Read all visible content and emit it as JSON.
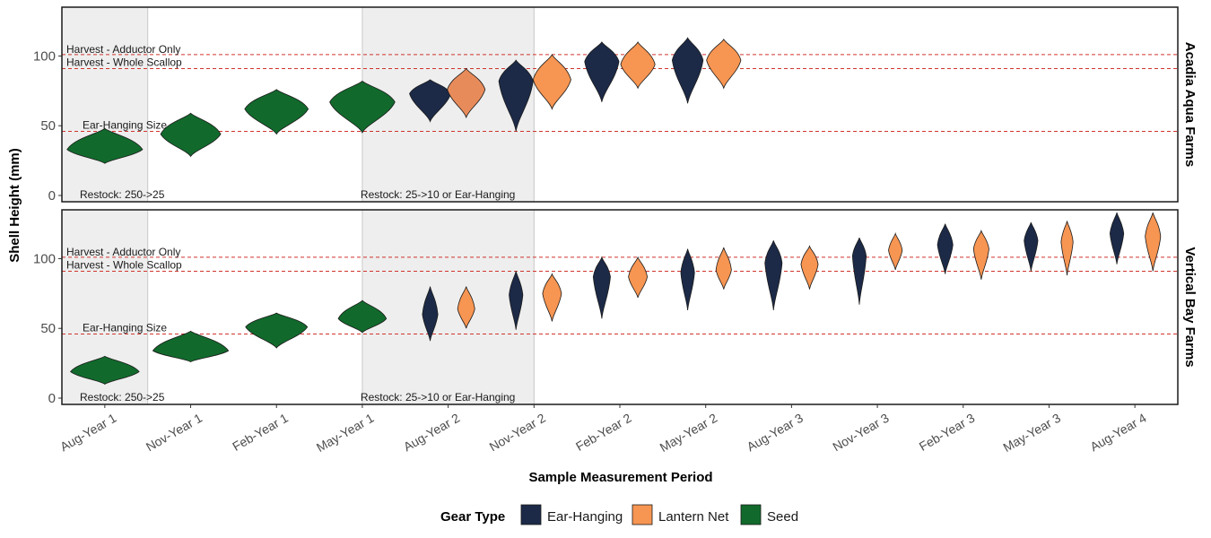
{
  "chart_data": {
    "type": "violin",
    "xlabel": "Sample Measurement Period",
    "ylabel": "Shell Height (mm)",
    "ylim": [
      0,
      135
    ],
    "y_ticks": [
      0,
      50,
      100
    ],
    "categories": [
      "Aug-Year 1",
      "Nov-Year 1",
      "Feb-Year 1",
      "May-Year 1",
      "Aug-Year 2",
      "Nov-Year 2",
      "Feb-Year 2",
      "May-Year 2",
      "Aug-Year 3",
      "Nov-Year 3",
      "Feb-Year 3",
      "May-Year 3",
      "Aug-Year 4"
    ],
    "colors": {
      "Ear-Hanging": "#1c2a48",
      "Lantern Net": "#f79552",
      "Seed": "#116a2c",
      "Lantern Net (Aug-Year 2, Acadia)": "#e88b5b"
    },
    "legend": {
      "title": "Gear Type",
      "items": [
        "Ear-Hanging",
        "Lantern Net",
        "Seed"
      ],
      "position": "bottom"
    },
    "reference_lines": [
      {
        "label": "Harvest - Adductor Only",
        "y": 101
      },
      {
        "label": "Harvest - Whole Scallop",
        "y": 91
      },
      {
        "label": "Ear-Hanging Size",
        "y": 46
      }
    ],
    "shaded_periods": [
      {
        "from": "Aug-Year 1",
        "to": "Aug-Year 1",
        "label": "Restock: 250->25"
      },
      {
        "from": "May-Year 1",
        "to": "Nov-Year 2",
        "label": "Restock: 25->10 or Ear-Hanging"
      }
    ],
    "panels": [
      {
        "strip": "Acadia Aqua Farms",
        "violins": [
          {
            "x": "Aug-Year 1",
            "gear": "Seed",
            "min": 23,
            "max": 48,
            "median": 33,
            "half_width": 0.44
          },
          {
            "x": "Nov-Year 1",
            "gear": "Seed",
            "min": 28,
            "max": 59,
            "median": 44,
            "half_width": 0.35
          },
          {
            "x": "Feb-Year 1",
            "gear": "Seed",
            "min": 44,
            "max": 76,
            "median": 62,
            "half_width": 0.37
          },
          {
            "x": "May-Year 1",
            "gear": "Seed",
            "min": 45,
            "max": 82,
            "median": 67,
            "half_width": 0.38
          },
          {
            "x": "Aug-Year 2",
            "gear": "Ear-Hanging",
            "min": 53,
            "max": 83,
            "median": 73,
            "half_width": 0.24
          },
          {
            "x": "Aug-Year 2",
            "gear": "Lantern Net",
            "min": 56,
            "max": 91,
            "median": 76,
            "half_width": 0.22
          },
          {
            "x": "Nov-Year 2",
            "gear": "Ear-Hanging",
            "min": 46,
            "max": 97,
            "median": 82,
            "half_width": 0.2
          },
          {
            "x": "Nov-Year 2",
            "gear": "Lantern Net",
            "min": 62,
            "max": 101,
            "median": 83,
            "half_width": 0.22
          },
          {
            "x": "Feb-Year 2",
            "gear": "Ear-Hanging",
            "min": 67,
            "max": 110,
            "median": 96,
            "half_width": 0.2
          },
          {
            "x": "Feb-Year 2",
            "gear": "Lantern Net",
            "min": 77,
            "max": 110,
            "median": 94,
            "half_width": 0.2
          },
          {
            "x": "May-Year 2",
            "gear": "Ear-Hanging",
            "min": 66,
            "max": 113,
            "median": 97,
            "half_width": 0.18
          },
          {
            "x": "May-Year 2",
            "gear": "Lantern Net",
            "min": 77,
            "max": 112,
            "median": 97,
            "half_width": 0.2
          }
        ]
      },
      {
        "strip": "Vertical Bay Farms",
        "violins": [
          {
            "x": "Aug-Year 1",
            "gear": "Seed",
            "min": 10,
            "max": 30,
            "median": 19,
            "half_width": 0.4
          },
          {
            "x": "Nov-Year 1",
            "gear": "Seed",
            "min": 26,
            "max": 48,
            "median": 34,
            "half_width": 0.44
          },
          {
            "x": "Feb-Year 1",
            "gear": "Seed",
            "min": 36,
            "max": 61,
            "median": 51,
            "half_width": 0.36
          },
          {
            "x": "May-Year 1",
            "gear": "Seed",
            "min": 47,
            "max": 70,
            "median": 57,
            "half_width": 0.28
          },
          {
            "x": "Aug-Year 2",
            "gear": "Ear-Hanging",
            "min": 41,
            "max": 80,
            "median": 60,
            "half_width": 0.09
          },
          {
            "x": "Aug-Year 2",
            "gear": "Lantern Net",
            "min": 50,
            "max": 80,
            "median": 64,
            "half_width": 0.1
          },
          {
            "x": "Nov-Year 2",
            "gear": "Ear-Hanging",
            "min": 49,
            "max": 91,
            "median": 74,
            "half_width": 0.08
          },
          {
            "x": "Nov-Year 2",
            "gear": "Lantern Net",
            "min": 55,
            "max": 89,
            "median": 75,
            "half_width": 0.11
          },
          {
            "x": "Feb-Year 2",
            "gear": "Ear-Hanging",
            "min": 57,
            "max": 101,
            "median": 87,
            "half_width": 0.1
          },
          {
            "x": "Feb-Year 2",
            "gear": "Lantern Net",
            "min": 72,
            "max": 101,
            "median": 87,
            "half_width": 0.11
          },
          {
            "x": "May-Year 2",
            "gear": "Ear-Hanging",
            "min": 63,
            "max": 107,
            "median": 90,
            "half_width": 0.08
          },
          {
            "x": "May-Year 2",
            "gear": "Lantern Net",
            "min": 78,
            "max": 108,
            "median": 92,
            "half_width": 0.09
          },
          {
            "x": "Aug-Year 3",
            "gear": "Ear-Hanging",
            "min": 63,
            "max": 113,
            "median": 97,
            "half_width": 0.1
          },
          {
            "x": "Aug-Year 3",
            "gear": "Lantern Net",
            "min": 78,
            "max": 109,
            "median": 96,
            "half_width": 0.1
          },
          {
            "x": "Nov-Year 3",
            "gear": "Ear-Hanging",
            "min": 67,
            "max": 115,
            "median": 102,
            "half_width": 0.08
          },
          {
            "x": "Nov-Year 3",
            "gear": "Lantern Net",
            "min": 92,
            "max": 118,
            "median": 106,
            "half_width": 0.08
          },
          {
            "x": "Feb-Year 3",
            "gear": "Ear-Hanging",
            "min": 89,
            "max": 125,
            "median": 110,
            "half_width": 0.09
          },
          {
            "x": "Feb-Year 3",
            "gear": "Lantern Net",
            "min": 85,
            "max": 120,
            "median": 107,
            "half_width": 0.09
          },
          {
            "x": "May-Year 3",
            "gear": "Ear-Hanging",
            "min": 91,
            "max": 126,
            "median": 113,
            "half_width": 0.08
          },
          {
            "x": "May-Year 3",
            "gear": "Lantern Net",
            "min": 88,
            "max": 127,
            "median": 112,
            "half_width": 0.07
          },
          {
            "x": "Aug-Year 4",
            "gear": "Ear-Hanging",
            "min": 96,
            "max": 133,
            "median": 118,
            "half_width": 0.08
          },
          {
            "x": "Aug-Year 4",
            "gear": "Lantern Net",
            "min": 91,
            "max": 133,
            "median": 116,
            "half_width": 0.09
          }
        ]
      }
    ]
  }
}
